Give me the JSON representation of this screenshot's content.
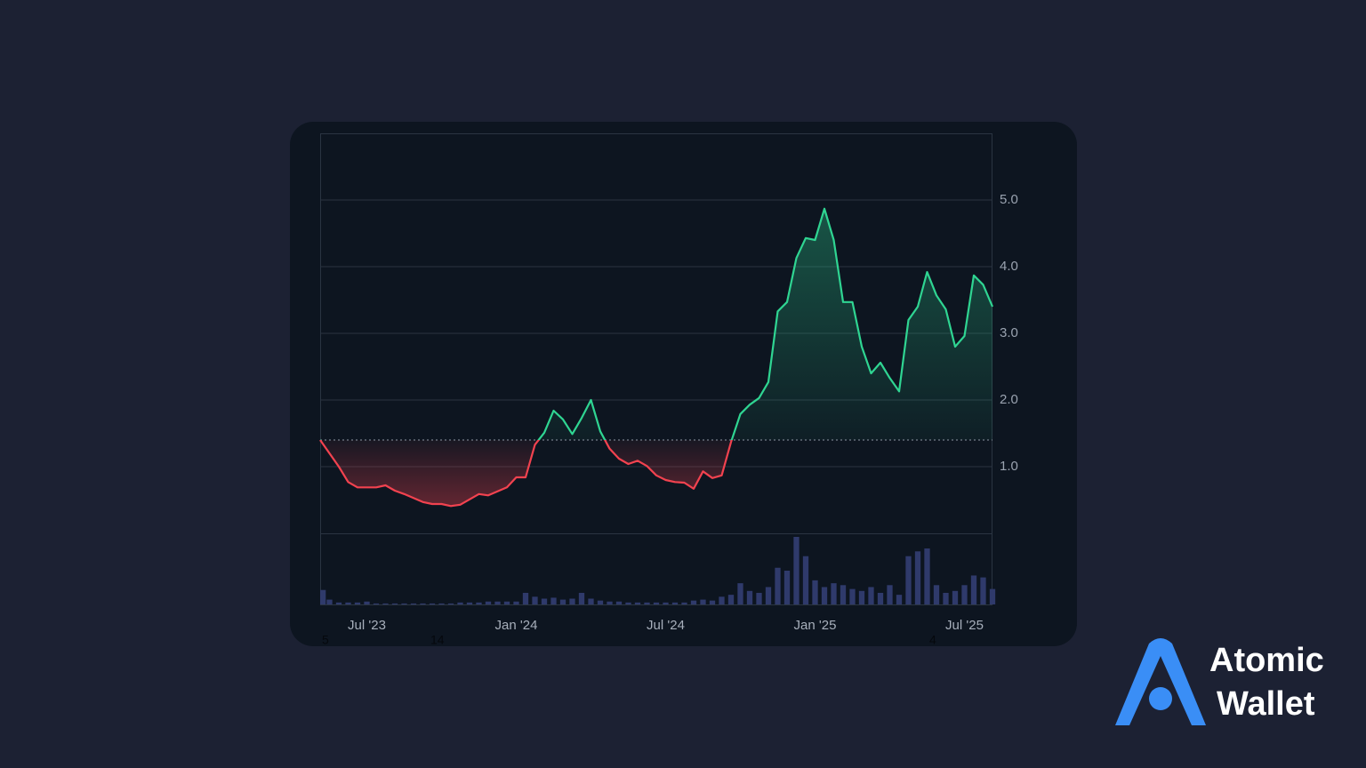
{
  "chart_data": {
    "type": "line",
    "categories": [
      null,
      null,
      null,
      null,
      null,
      "Jul '23",
      null,
      null,
      null,
      null,
      null,
      null,
      null,
      null,
      null,
      null,
      null,
      null,
      null,
      null,
      null,
      "Jan '24",
      null,
      null,
      null,
      null,
      null,
      null,
      null,
      null,
      null,
      null,
      null,
      null,
      null,
      null,
      null,
      "Jul '24",
      null,
      null,
      null,
      null,
      null,
      null,
      null,
      null,
      null,
      null,
      null,
      null,
      null,
      null,
      null,
      "Jan '25",
      null,
      null,
      null,
      null,
      null,
      null,
      null,
      null,
      null,
      null,
      null,
      null,
      null,
      null,
      null,
      "Jul '25",
      null,
      null,
      null
    ],
    "values": [
      1.4,
      1.2,
      1.0,
      0.77,
      0.69,
      0.69,
      0.69,
      0.72,
      0.64,
      0.59,
      0.53,
      0.47,
      0.44,
      0.44,
      0.41,
      0.43,
      0.51,
      0.59,
      0.57,
      0.63,
      0.69,
      0.84,
      0.84,
      1.33,
      1.51,
      1.84,
      1.71,
      1.49,
      1.73,
      2.0,
      1.53,
      1.27,
      1.12,
      1.04,
      1.09,
      1.01,
      0.87,
      0.8,
      0.77,
      0.76,
      0.67,
      0.93,
      0.83,
      0.87,
      1.37,
      1.79,
      1.93,
      2.03,
      2.27,
      3.33,
      3.47,
      4.13,
      4.43,
      4.4,
      4.87,
      4.4,
      3.47,
      3.47,
      2.8,
      2.4,
      2.56,
      2.33,
      2.13,
      3.2,
      3.4,
      3.92,
      3.57,
      3.36,
      2.8,
      2.96,
      3.87,
      3.73,
      3.4
    ],
    "volume": [
      15,
      5,
      2,
      2,
      2,
      3,
      1,
      1,
      1,
      1,
      1,
      1,
      1,
      1,
      1,
      2,
      2,
      2,
      3,
      3,
      3,
      3,
      12,
      8,
      6,
      7,
      5,
      6,
      12,
      6,
      4,
      3,
      3,
      2,
      2,
      2,
      2,
      2,
      2,
      2,
      4,
      5,
      4,
      8,
      10,
      22,
      14,
      12,
      18,
      38,
      35,
      70,
      50,
      25,
      18,
      22,
      20,
      16,
      14,
      18,
      12,
      20,
      10,
      50,
      55,
      58,
      20,
      12,
      14,
      20,
      30,
      28,
      16
    ],
    "up_color": "#2fd592",
    "down_color": "#f2424f",
    "volume_color": "#2f3a6b",
    "ylim": [
      0,
      6
    ],
    "yticks": [
      {
        "value": 1,
        "label": "1.0"
      },
      {
        "value": 2,
        "label": "2.0"
      },
      {
        "value": 3,
        "label": "3.0"
      },
      {
        "value": 4,
        "label": "4.0"
      },
      {
        "value": 5,
        "label": "5.0"
      }
    ],
    "grid": true,
    "annotations": [
      "5",
      "14",
      "4"
    ]
  },
  "brand": {
    "line1": "Atomic",
    "line2": "Wallet"
  }
}
